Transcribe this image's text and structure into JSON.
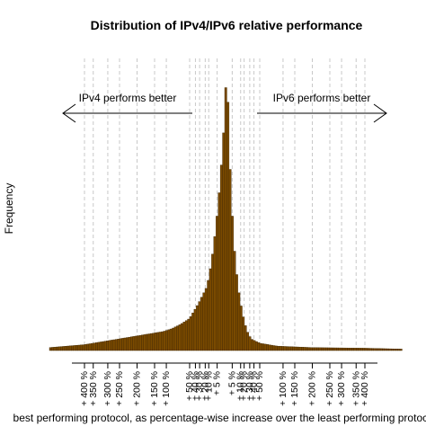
{
  "chart_data": {
    "type": "bar",
    "title": "Distribution of IPv4/IPv6 relative performance",
    "xlabel": "best performing protocol, as percentage-wise increase over the least performing protocol",
    "ylabel": "Frequency",
    "xlim": [
      -1.0,
      1.0
    ],
    "ylim": [
      0,
      1.0
    ],
    "grid": "vertical dashed at tick positions",
    "annotations": {
      "left": "IPv4 performs better",
      "right": "IPv6 performs better"
    },
    "x_ticks": [
      {
        "x": -0.8,
        "label": "+ 400 %"
      },
      {
        "x": -0.75,
        "label": "+ 350 %"
      },
      {
        "x": -0.667,
        "label": "+ 300 %"
      },
      {
        "x": -0.6,
        "label": "+ 250 %"
      },
      {
        "x": -0.5,
        "label": "+ 200 %"
      },
      {
        "x": -0.4,
        "label": "+ 150 %"
      },
      {
        "x": -0.333,
        "label": "+ 100 %"
      },
      {
        "x": -0.2,
        "label": "+ 50 %"
      },
      {
        "x": -0.167,
        "label": "+ 40 %"
      },
      {
        "x": -0.143,
        "label": "+ 30 %"
      },
      {
        "x": -0.111,
        "label": "+ 20 %"
      },
      {
        "x": -0.091,
        "label": "+ 10 %"
      },
      {
        "x": -0.043,
        "label": "+ 5 %"
      },
      {
        "x": 0.043,
        "label": "+ 5 %"
      },
      {
        "x": 0.091,
        "label": "+ 10 %"
      },
      {
        "x": 0.111,
        "label": "+ 20 %"
      },
      {
        "x": 0.143,
        "label": "+ 30 %"
      },
      {
        "x": 0.167,
        "label": "+ 40 %"
      },
      {
        "x": 0.2,
        "label": "+ 50 %"
      },
      {
        "x": 0.333,
        "label": "+ 100 %"
      },
      {
        "x": 0.4,
        "label": "+ 150 %"
      },
      {
        "x": 0.5,
        "label": "+ 200 %"
      },
      {
        "x": 0.6,
        "label": "+ 250 %"
      },
      {
        "x": 0.667,
        "label": "+ 300 %"
      },
      {
        "x": 0.75,
        "label": "+ 350 %"
      },
      {
        "x": 0.8,
        "label": "+ 400 %"
      }
    ],
    "bins": [
      {
        "x": -1.0,
        "value": 0.01
      },
      {
        "x": -0.9,
        "value": 0.015
      },
      {
        "x": -0.8,
        "value": 0.02
      },
      {
        "x": -0.7,
        "value": 0.03
      },
      {
        "x": -0.6,
        "value": 0.04
      },
      {
        "x": -0.5,
        "value": 0.05
      },
      {
        "x": -0.4,
        "value": 0.06
      },
      {
        "x": -0.35,
        "value": 0.065
      },
      {
        "x": -0.3,
        "value": 0.075
      },
      {
        "x": -0.25,
        "value": 0.09
      },
      {
        "x": -0.2,
        "value": 0.11
      },
      {
        "x": -0.15,
        "value": 0.16
      },
      {
        "x": -0.1,
        "value": 0.22
      },
      {
        "x": -0.075,
        "value": 0.3
      },
      {
        "x": -0.05,
        "value": 0.42
      },
      {
        "x": -0.025,
        "value": 0.58
      },
      {
        "x": 0.0,
        "value": 0.8
      },
      {
        "x": 0.0125,
        "value": 1.0
      },
      {
        "x": 0.025,
        "value": 0.7
      },
      {
        "x": 0.05,
        "value": 0.38
      },
      {
        "x": 0.075,
        "value": 0.22
      },
      {
        "x": 0.1,
        "value": 0.13
      },
      {
        "x": 0.125,
        "value": 0.07
      },
      {
        "x": 0.15,
        "value": 0.04
      },
      {
        "x": 0.2,
        "value": 0.025
      },
      {
        "x": 0.3,
        "value": 0.015
      },
      {
        "x": 0.5,
        "value": 0.01
      },
      {
        "x": 0.8,
        "value": 0.008
      },
      {
        "x": 1.0,
        "value": 0.005
      }
    ],
    "colors": {
      "fill": "#7a4a00",
      "stroke": "#3d2500",
      "grid": "#c8c8c8"
    }
  }
}
